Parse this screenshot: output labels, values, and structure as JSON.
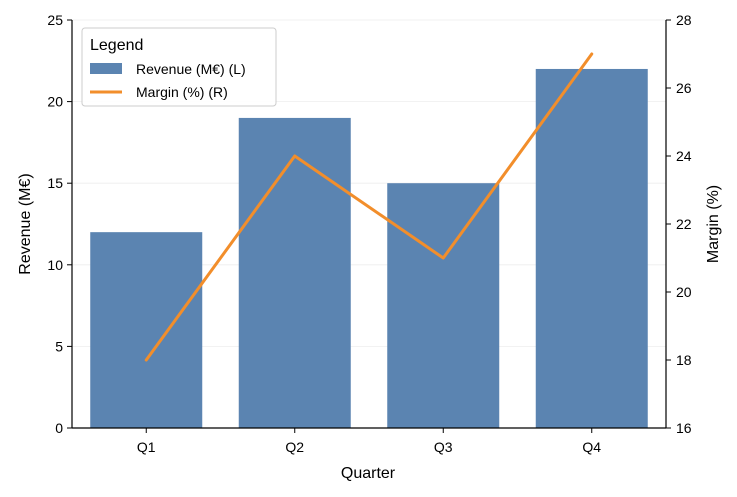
{
  "chart_data": {
    "type": "bar",
    "categories": [
      "Q1",
      "Q2",
      "Q3",
      "Q4"
    ],
    "series": [
      {
        "name": "Revenue (M€) (L)",
        "type": "bar",
        "axis": "left",
        "values": [
          12,
          19,
          15,
          22
        ],
        "color": "#5b84b1"
      },
      {
        "name": "Margin (%) (R)",
        "type": "line",
        "axis": "right",
        "values": [
          18,
          24,
          21,
          27
        ],
        "color": "#f28e2b"
      }
    ],
    "xlabel": "Quarter",
    "ylabel": "Revenue (M€)",
    "y2label": "Margin (%)",
    "ylim": [
      0,
      25
    ],
    "y2lim": [
      16,
      28
    ],
    "yticks": [
      "0",
      "5",
      "10",
      "15",
      "20",
      "25"
    ],
    "y2ticks": [
      "16",
      "18",
      "20",
      "22",
      "24",
      "26",
      "28"
    ],
    "grid": true,
    "legend": {
      "title": "Legend",
      "placement": "top-left"
    }
  }
}
